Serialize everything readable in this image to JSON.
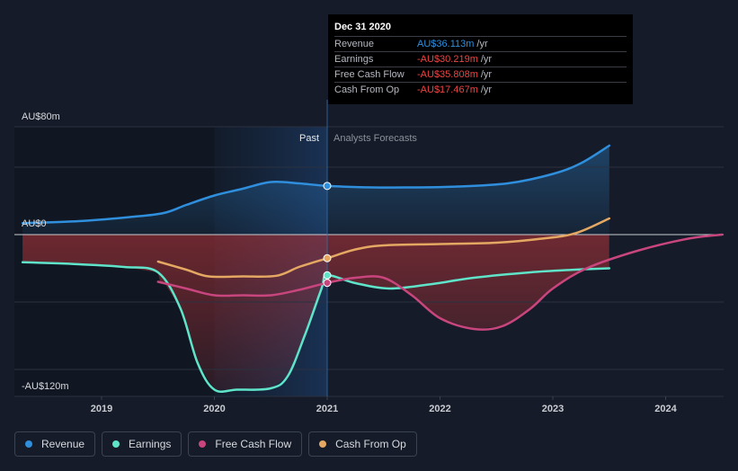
{
  "chart_data": {
    "type": "line",
    "y_labels": {
      "top": "AU$80m",
      "zero": "AU$0",
      "bottom": "-AU$120m"
    },
    "ylim": [
      -120,
      80
    ],
    "x_ticks": [
      "2019",
      "2020",
      "2021",
      "2022",
      "2023",
      "2024"
    ],
    "xlim": [
      2018.25,
      2024.5
    ],
    "divider_x": 2021,
    "region_labels": {
      "past": "Past",
      "forecast": "Analysts Forecasts"
    },
    "series": [
      {
        "name": "Revenue",
        "color": "#2f8fdd",
        "points": [
          [
            2018.3,
            8.5
          ],
          [
            2018.8,
            10
          ],
          [
            2019.25,
            13
          ],
          [
            2019.55,
            16
          ],
          [
            2019.75,
            22
          ],
          [
            2020.0,
            29
          ],
          [
            2020.25,
            34
          ],
          [
            2020.5,
            39
          ],
          [
            2020.75,
            38
          ],
          [
            2021.0,
            36.1
          ],
          [
            2021.4,
            35
          ],
          [
            2021.75,
            35
          ],
          [
            2022.1,
            35.5
          ],
          [
            2022.6,
            38
          ],
          [
            2023.0,
            45
          ],
          [
            2023.25,
            53
          ],
          [
            2023.5,
            66
          ]
        ]
      },
      {
        "name": "Earnings",
        "color": "#5fe3c9",
        "points": [
          [
            2018.3,
            -20.5
          ],
          [
            2018.8,
            -22
          ],
          [
            2019.2,
            -24
          ],
          [
            2019.5,
            -28
          ],
          [
            2019.7,
            -55
          ],
          [
            2019.85,
            -95
          ],
          [
            2020.0,
            -115
          ],
          [
            2020.2,
            -115
          ],
          [
            2020.5,
            -114
          ],
          [
            2020.65,
            -105
          ],
          [
            2020.8,
            -75
          ],
          [
            2020.95,
            -40
          ],
          [
            2021.0,
            -30.2
          ],
          [
            2021.25,
            -36
          ],
          [
            2021.55,
            -40
          ],
          [
            2021.9,
            -37
          ],
          [
            2022.3,
            -32
          ],
          [
            2022.8,
            -28
          ],
          [
            2023.2,
            -26
          ],
          [
            2023.5,
            -25
          ]
        ]
      },
      {
        "name": "Free Cash Flow",
        "color": "#c9457d",
        "points": [
          [
            2019.5,
            -35
          ],
          [
            2019.75,
            -40
          ],
          [
            2020.0,
            -45
          ],
          [
            2020.25,
            -45
          ],
          [
            2020.5,
            -45
          ],
          [
            2020.75,
            -41
          ],
          [
            2021.0,
            -35.8
          ],
          [
            2021.25,
            -32
          ],
          [
            2021.5,
            -32
          ],
          [
            2021.75,
            -45
          ],
          [
            2022.0,
            -62
          ],
          [
            2022.3,
            -70
          ],
          [
            2022.55,
            -68
          ],
          [
            2022.8,
            -55
          ],
          [
            2023.0,
            -40
          ],
          [
            2023.3,
            -25
          ],
          [
            2023.75,
            -12
          ],
          [
            2024.2,
            -3
          ],
          [
            2024.5,
            0
          ]
        ]
      },
      {
        "name": "Cash From Op",
        "color": "#e4a862",
        "points": [
          [
            2019.5,
            -20
          ],
          [
            2019.75,
            -26
          ],
          [
            2019.95,
            -31
          ],
          [
            2020.25,
            -31
          ],
          [
            2020.55,
            -30.5
          ],
          [
            2020.75,
            -24
          ],
          [
            2021.0,
            -17.5
          ],
          [
            2021.25,
            -11
          ],
          [
            2021.5,
            -8
          ],
          [
            2022.0,
            -7
          ],
          [
            2022.5,
            -6
          ],
          [
            2022.9,
            -3
          ],
          [
            2023.2,
            1
          ],
          [
            2023.5,
            12
          ]
        ]
      }
    ],
    "tooltip": {
      "date": "Dec 31 2020",
      "rows": [
        {
          "label": "Revenue",
          "value": "AU$36.113m",
          "unit": "/yr",
          "color": "#2f8fdd"
        },
        {
          "label": "Earnings",
          "value": "-AU$30.219m",
          "unit": "/yr",
          "color": "#ef4444"
        },
        {
          "label": "Free Cash Flow",
          "value": "-AU$35.808m",
          "unit": "/yr",
          "color": "#ef4444"
        },
        {
          "label": "Cash From Op",
          "value": "-AU$17.467m",
          "unit": "/yr",
          "color": "#ef4444"
        }
      ]
    },
    "legend": [
      {
        "label": "Revenue",
        "color": "#2f8fdd"
      },
      {
        "label": "Earnings",
        "color": "#5fe3c9"
      },
      {
        "label": "Free Cash Flow",
        "color": "#c9457d"
      },
      {
        "label": "Cash From Op",
        "color": "#e4a862"
      }
    ]
  }
}
